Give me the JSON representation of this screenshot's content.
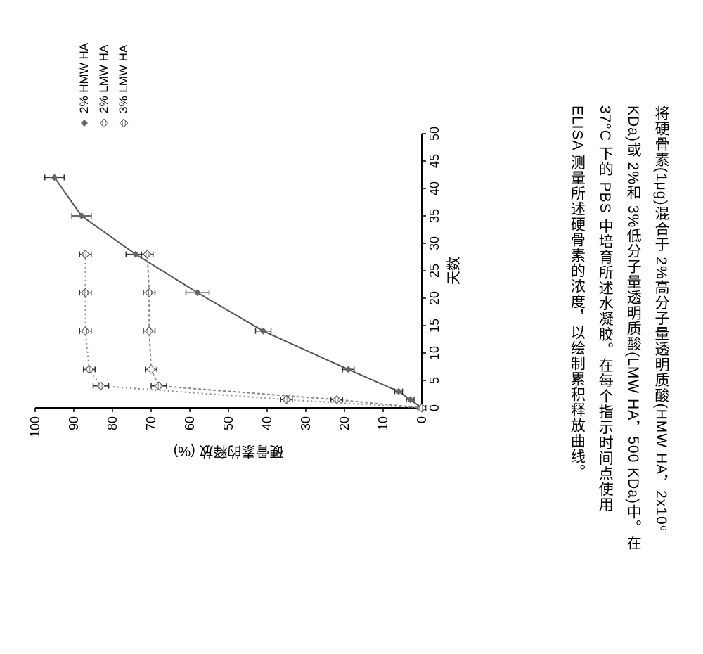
{
  "chart": {
    "type": "line",
    "x_axis": {
      "label": "天数",
      "min": 0,
      "max": 50,
      "ticks": [
        0,
        5,
        10,
        15,
        20,
        25,
        30,
        35,
        40,
        45,
        50
      ],
      "label_fontsize": 20,
      "tick_fontsize": 18
    },
    "y_axis": {
      "label": "硬骨素的释放 (%)",
      "min": 0,
      "max": 100,
      "ticks": [
        0,
        10,
        20,
        30,
        40,
        50,
        60,
        70,
        80,
        90,
        100
      ],
      "label_fontsize": 20,
      "tick_fontsize": 18
    },
    "background_color": "#ffffff",
    "axis_color": "#000000",
    "series": [
      {
        "name": "2% HMW HA",
        "marker": "diamond",
        "line_style": "solid",
        "color": "#555555",
        "x": [
          0,
          1.5,
          3,
          7,
          14,
          21,
          28,
          35,
          42
        ],
        "y": [
          0,
          3,
          6,
          19,
          41,
          58,
          74,
          88,
          95
        ],
        "err": [
          1,
          1,
          1,
          1.5,
          2,
          3,
          2.5,
          2.5,
          2.5
        ]
      },
      {
        "name": "2% LMW HA",
        "marker": "hatch",
        "line_style": "dash",
        "color": "#888888",
        "x": [
          0,
          1.5,
          4,
          7,
          14,
          21,
          28
        ],
        "y": [
          0,
          22,
          68,
          70,
          70.5,
          70.5,
          71
        ],
        "err": [
          1,
          1.5,
          2,
          1.5,
          1.5,
          1.5,
          1.5
        ]
      },
      {
        "name": "3% LMW HA",
        "marker": "hatch",
        "line_style": "dot",
        "color": "#888888",
        "x": [
          0,
          1.5,
          4,
          7,
          14,
          21,
          28
        ],
        "y": [
          0,
          35,
          83,
          86,
          87,
          87,
          87
        ],
        "err": [
          1,
          1.5,
          2,
          1.5,
          1.5,
          1.5,
          1.5
        ]
      }
    ],
    "legend": {
      "position": "right",
      "items": [
        "2% HMW HA",
        "2% LMW HA",
        "3% LMW HA"
      ]
    }
  },
  "caption": {
    "text": "将硬骨素(1μg)混合于 2%高分子量透明质酸(HMW HA，2x10⁶ KDa)或 2%和 3%低分子量透明质酸(LMW HA，500 KDa)中。在 37°C 下的 PBS 中培育所述水凝胶。在每个指示时间点使用 ELISA 测量所述硬骨素的浓度，以绘制累积释放曲线。",
    "fontsize": 21,
    "color": "#000000"
  }
}
